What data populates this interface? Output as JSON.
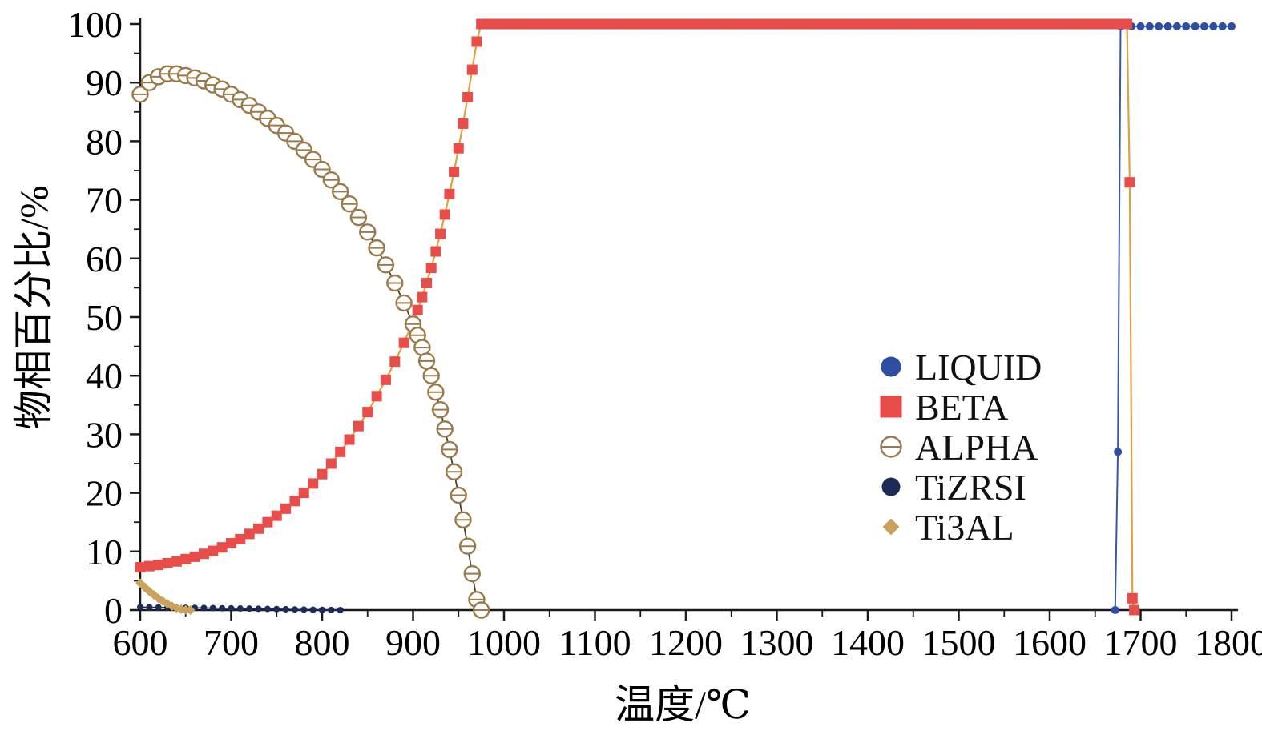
{
  "chart_data": {
    "type": "line",
    "title": "",
    "xlabel": "温度/℃",
    "ylabel": "物相百分比/%",
    "xlim": [
      600,
      1800
    ],
    "ylim": [
      0,
      100
    ],
    "x_ticks": [
      600,
      700,
      800,
      900,
      1000,
      1100,
      1200,
      1300,
      1400,
      1500,
      1600,
      1700,
      1800
    ],
    "y_ticks": [
      0,
      10,
      20,
      30,
      40,
      50,
      60,
      70,
      80,
      90,
      100
    ],
    "x_minor_step": 50,
    "y_minor_step": 5,
    "grid": false,
    "axis_color": "#1a1a1a",
    "legend_position": "inside-right",
    "series": [
      {
        "name": "LIQUID",
        "marker": "circle",
        "color": "#2e4ea3",
        "line_color": "#3a57a7",
        "line_width": 2,
        "marker_size": 10,
        "legend_size": 25,
        "points": [
          [
            1672,
            0
          ],
          [
            1675,
            27
          ],
          [
            1678,
            99.6
          ],
          {
            "from": 1690,
            "to": 1800,
            "step": 10,
            "y": 99.6
          }
        ]
      },
      {
        "name": "BETA",
        "marker": "square",
        "color": "#e94d4a",
        "line_color": "#dba23f",
        "line_width": 2.2,
        "marker_size": 13,
        "legend_size": 27,
        "points": [
          [
            600,
            7.3
          ],
          [
            610,
            7.5
          ],
          [
            620,
            7.7
          ],
          [
            630,
            8.0
          ],
          [
            640,
            8.3
          ],
          [
            650,
            8.7
          ],
          [
            660,
            9.1
          ],
          [
            670,
            9.6
          ],
          [
            680,
            10.1
          ],
          [
            690,
            10.7
          ],
          [
            700,
            11.4
          ],
          [
            710,
            12.1
          ],
          [
            720,
            13.0
          ],
          [
            730,
            13.9
          ],
          [
            740,
            15.0
          ],
          [
            750,
            16.1
          ],
          [
            760,
            17.3
          ],
          [
            770,
            18.6
          ],
          [
            780,
            20.0
          ],
          [
            790,
            21.6
          ],
          [
            800,
            23.2
          ],
          [
            810,
            25.0
          ],
          [
            820,
            27.0
          ],
          [
            830,
            29.1
          ],
          [
            840,
            31.4
          ],
          [
            850,
            33.8
          ],
          [
            860,
            36.5
          ],
          [
            870,
            39.3
          ],
          [
            880,
            42.4
          ],
          [
            890,
            45.6
          ],
          [
            900,
            49.2
          ],
          [
            905,
            51.2
          ],
          [
            910,
            53.4
          ],
          [
            915,
            55.8
          ],
          [
            920,
            58.4
          ],
          [
            925,
            61.2
          ],
          [
            930,
            64.2
          ],
          [
            935,
            67.5
          ],
          [
            940,
            71.0
          ],
          [
            945,
            74.8
          ],
          [
            950,
            78.8
          ],
          [
            955,
            83.0
          ],
          [
            960,
            87.5
          ],
          [
            965,
            92.2
          ],
          [
            970,
            97.0
          ],
          [
            975,
            100
          ],
          {
            "from": 985,
            "to": 1685,
            "step": 10,
            "y": 100
          },
          [
            1688,
            73
          ],
          [
            1691,
            2
          ],
          [
            1693,
            0
          ]
        ]
      },
      {
        "name": "ALPHA",
        "marker": "open-circle-bar",
        "color": "#9b7a4a",
        "line_color": "#45412f",
        "line_width": 1.8,
        "marker_size": 19,
        "legend_size": 25,
        "points": [
          [
            600,
            88.0
          ],
          [
            610,
            90.0
          ],
          [
            620,
            91.0
          ],
          [
            630,
            91.5
          ],
          [
            640,
            91.5
          ],
          [
            650,
            91.2
          ],
          [
            660,
            90.8
          ],
          [
            670,
            90.3
          ],
          [
            680,
            89.6
          ],
          [
            690,
            88.9
          ],
          [
            700,
            88.0
          ],
          [
            710,
            87.1
          ],
          [
            720,
            86.1
          ],
          [
            730,
            85.0
          ],
          [
            740,
            83.9
          ],
          [
            750,
            82.7
          ],
          [
            760,
            81.4
          ],
          [
            770,
            80.0
          ],
          [
            780,
            78.5
          ],
          [
            790,
            76.9
          ],
          [
            800,
            75.2
          ],
          [
            810,
            73.4
          ],
          [
            820,
            71.4
          ],
          [
            830,
            69.3
          ],
          [
            840,
            67.0
          ],
          [
            850,
            64.5
          ],
          [
            860,
            61.8
          ],
          [
            870,
            58.9
          ],
          [
            880,
            55.8
          ],
          [
            890,
            52.4
          ],
          [
            900,
            48.8
          ],
          [
            905,
            46.9
          ],
          [
            910,
            44.8
          ],
          [
            915,
            42.5
          ],
          [
            920,
            40.0
          ],
          [
            925,
            37.2
          ],
          [
            930,
            34.2
          ],
          [
            935,
            30.9
          ],
          [
            940,
            27.4
          ],
          [
            945,
            23.6
          ],
          [
            950,
            19.6
          ],
          [
            955,
            15.4
          ],
          [
            960,
            10.9
          ],
          [
            965,
            6.2
          ],
          [
            970,
            1.8
          ],
          [
            975,
            0
          ]
        ]
      },
      {
        "name": "TiZRSI",
        "marker": "circle",
        "color": "#1c2b57",
        "line_color": "#1c2b57",
        "line_width": 1.5,
        "marker_size": 8,
        "legend_size": 23,
        "points": [
          [
            600,
            0.5
          ],
          [
            610,
            0.48
          ],
          [
            620,
            0.46
          ],
          [
            630,
            0.44
          ],
          [
            640,
            0.42
          ],
          [
            650,
            0.4
          ],
          [
            660,
            0.38
          ],
          [
            670,
            0.36
          ],
          [
            680,
            0.34
          ],
          [
            690,
            0.31
          ],
          [
            700,
            0.29
          ],
          [
            710,
            0.27
          ],
          [
            720,
            0.25
          ],
          [
            730,
            0.22
          ],
          [
            740,
            0.2
          ],
          [
            750,
            0.17
          ],
          [
            760,
            0.14
          ],
          [
            770,
            0.11
          ],
          [
            780,
            0.08
          ],
          [
            790,
            0.05
          ],
          [
            800,
            0.03
          ],
          [
            810,
            0.01
          ],
          [
            820,
            0
          ]
        ]
      },
      {
        "name": "Ti3AL",
        "marker": "diamond",
        "color": "#c9a25e",
        "line_color": "#caa45f",
        "line_width": 1.5,
        "marker_size": 12,
        "legend_size": 21,
        "points": [
          [
            600,
            4.6
          ],
          [
            605,
            3.9
          ],
          [
            610,
            3.2
          ],
          [
            615,
            2.6
          ],
          [
            620,
            2.0
          ],
          [
            625,
            1.5
          ],
          [
            630,
            1.05
          ],
          [
            635,
            0.65
          ],
          [
            640,
            0.35
          ],
          [
            645,
            0.15
          ],
          [
            650,
            0.05
          ],
          [
            655,
            0
          ]
        ]
      }
    ]
  }
}
